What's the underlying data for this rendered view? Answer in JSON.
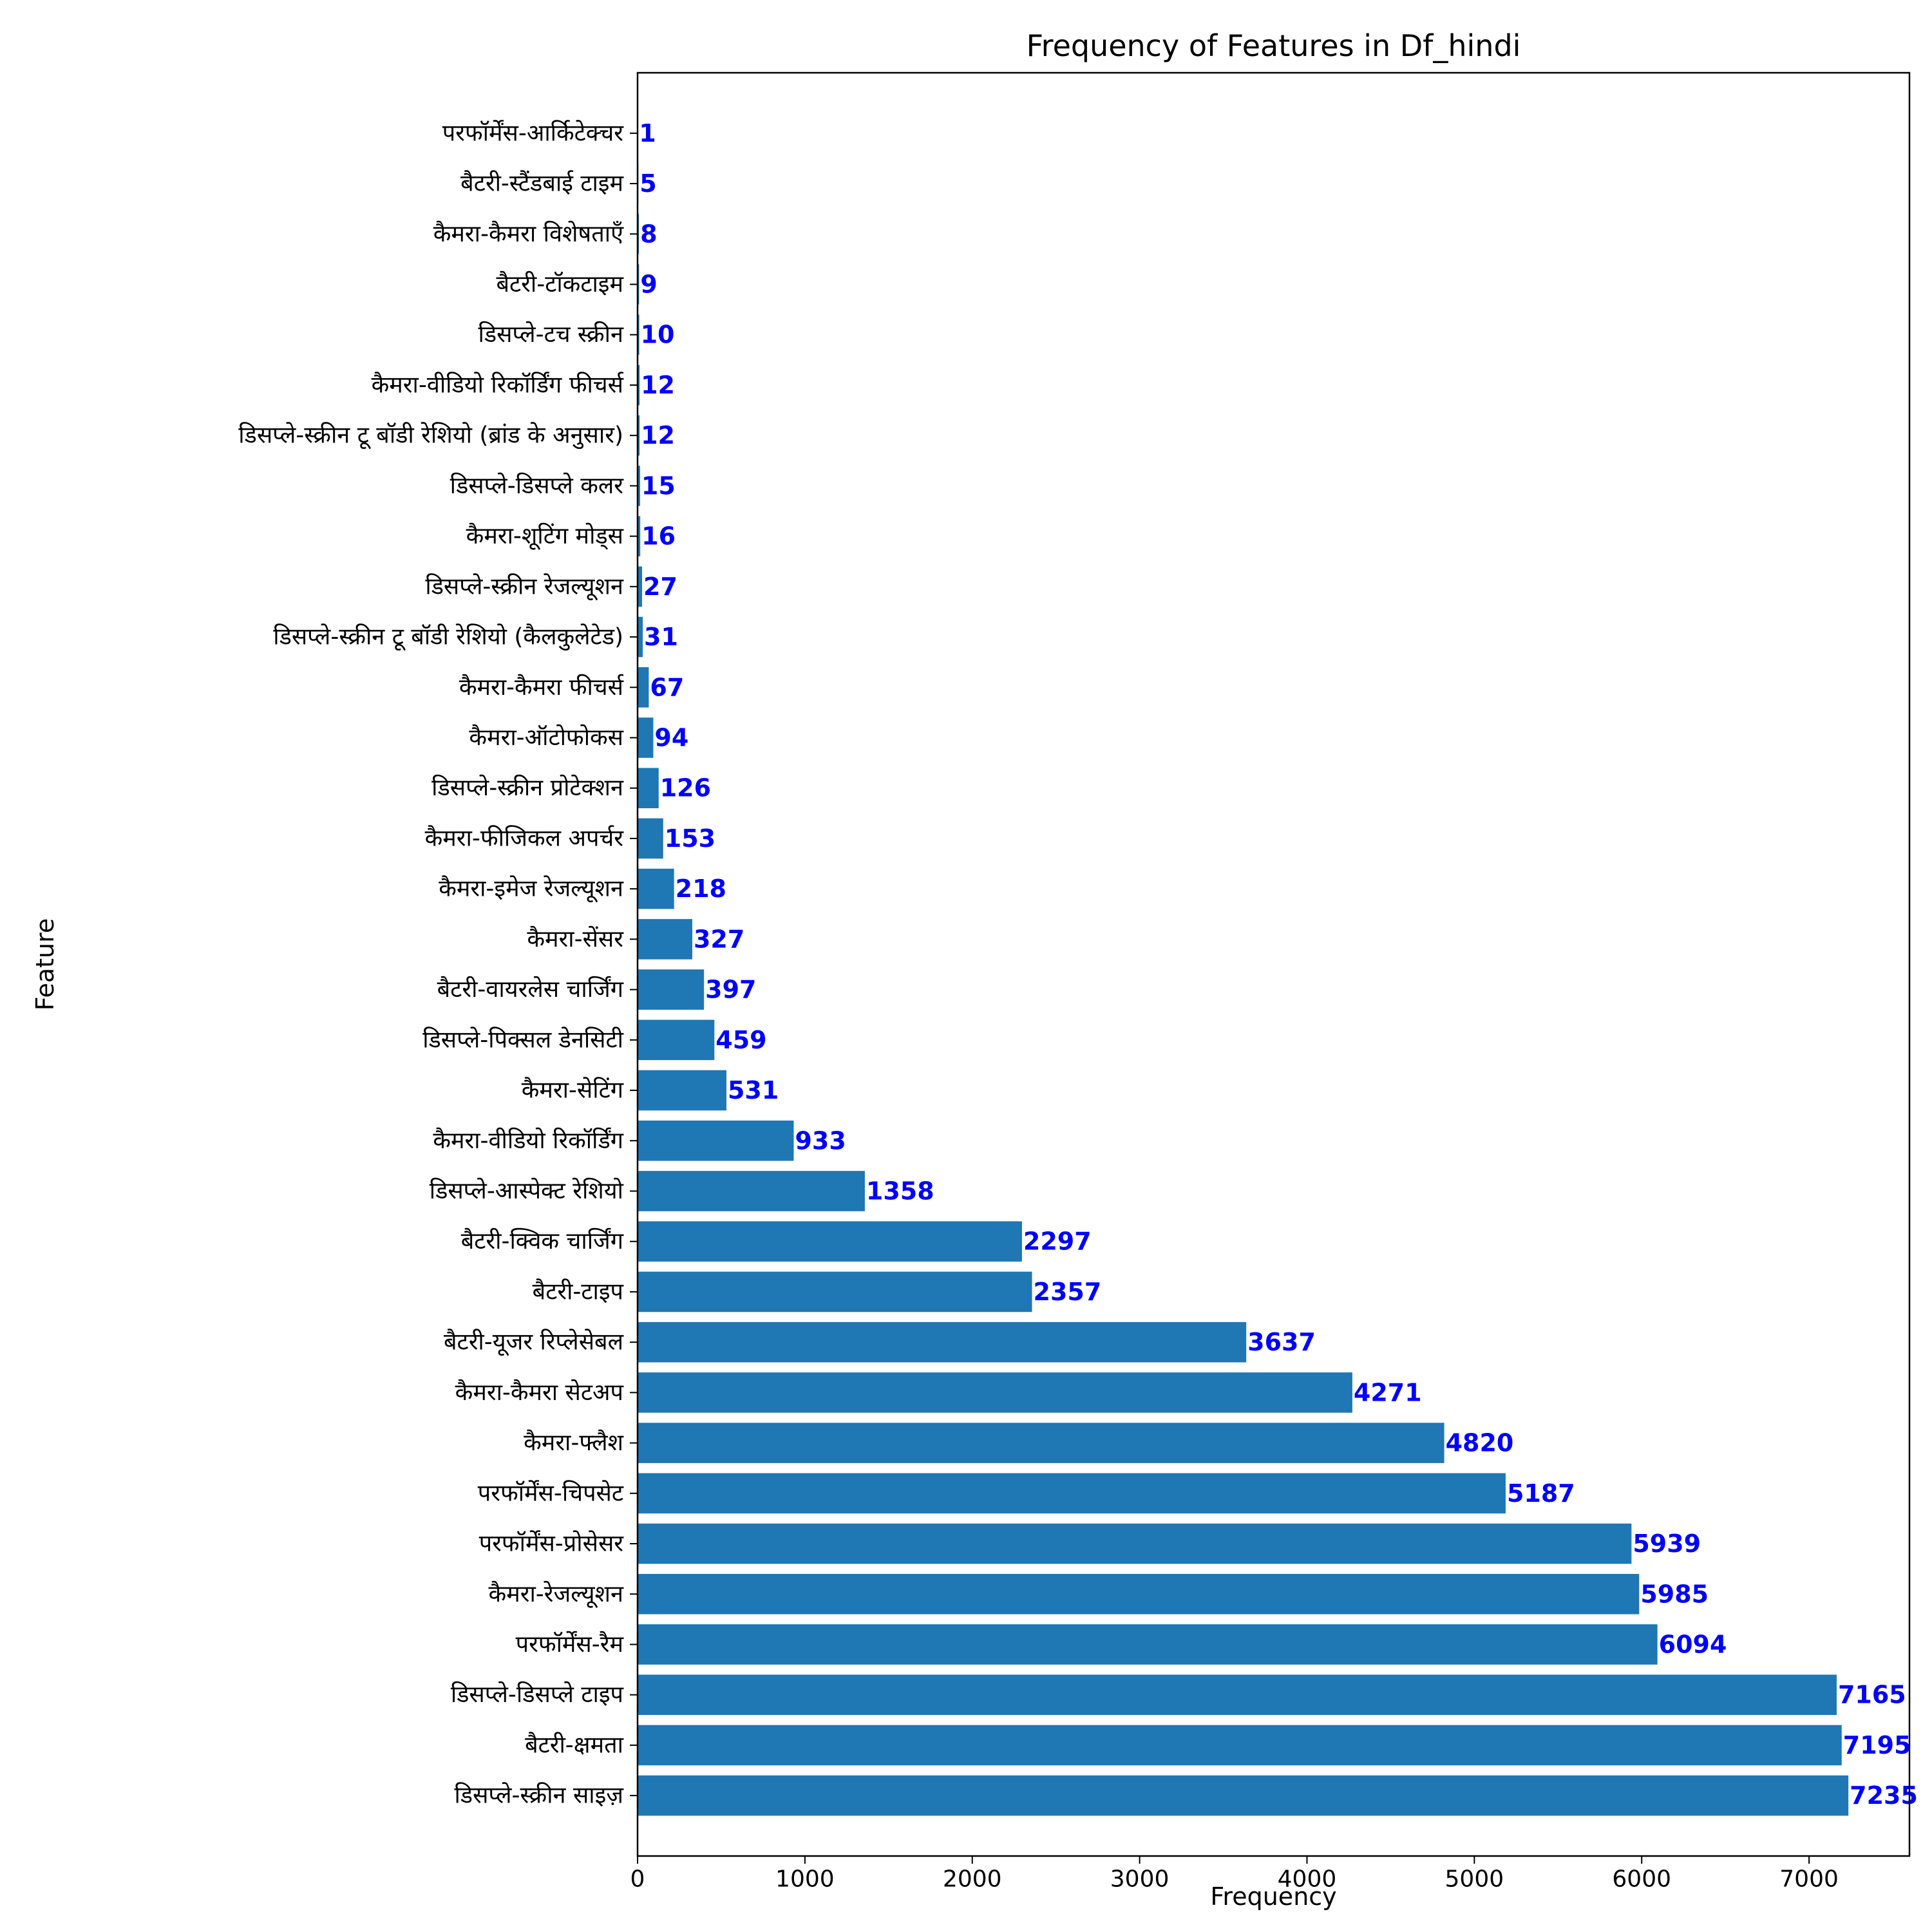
{
  "chart_data": {
    "type": "bar",
    "orientation": "horizontal",
    "title": "Frequency of Features in Df_hindi",
    "xlabel": "Frequency",
    "ylabel": "Feature",
    "xlim": [
      0,
      7600
    ],
    "xticks": [
      0,
      1000,
      2000,
      3000,
      4000,
      5000,
      6000,
      7000
    ],
    "grid": false,
    "categories": [
      "डिसप्ले-स्क्रीन साइज़",
      "बैटरी-क्षमता",
      "डिसप्ले-डिसप्ले टाइप",
      "परफॉर्मेंस-रैम",
      "कैमरा-रेजल्यूशन",
      "परफॉर्मेंस-प्रोसेसर",
      "परफॉर्मेंस-चिपसेट",
      "कैमरा-फ्लैश",
      "कैमरा-कैमरा सेटअप",
      "बैटरी-यूजर रिप्लेसेबल",
      "बैटरी-टाइप",
      "बैटरी-क्विक चार्जिंग",
      "डिसप्ले-आस्पेक्ट रेशियो",
      "कैमरा-वीडियो रिकॉर्डिंग",
      "कैमरा-सेटिंग",
      "डिसप्ले-पिक्सल डेनसिटी",
      "बैटरी-वायरलेस चार्जिंग",
      "कैमरा-सेंसर",
      "कैमरा-इमेज रेजल्यूशन",
      "कैमरा-फीजिकल अपर्चर",
      "डिसप्ले-स्क्रीन प्रोटेक्शन",
      "कैमरा-ऑटोफोकस",
      "कैमरा-कैमरा फीचर्स",
      "डिसप्ले-स्क्रीन टू बॉडी रेशियो (कैलकुलेटेड)",
      "डिसप्ले-स्क्रीन रेजल्यूशन",
      "कैमरा-शूटिंग मोड्स",
      "डिसप्ले-डिसप्ले कलर",
      "डिसप्ले-स्क्रीन टू बॉडी रेशियो (ब्रांड के अनुसार)",
      "कैमरा-वीडियो रिकॉर्डिंग फीचर्स",
      "डिसप्ले-टच स्क्रीन",
      "बैटरी-टॉकटाइम",
      "कैमरा-कैमरा विशेषताएँ",
      "बैटरी-स्टैंडबाई टाइम",
      "परफॉर्मेंस-आर्किटेक्चर"
    ],
    "values": [
      7235,
      7195,
      7165,
      6094,
      5985,
      5939,
      5187,
      4820,
      4271,
      3637,
      2357,
      2297,
      1358,
      933,
      531,
      459,
      397,
      327,
      218,
      153,
      126,
      94,
      67,
      31,
      27,
      16,
      15,
      12,
      12,
      10,
      9,
      8,
      5,
      1
    ],
    "bar_color": "#1f77b4",
    "value_label_color": "#0000ff"
  }
}
